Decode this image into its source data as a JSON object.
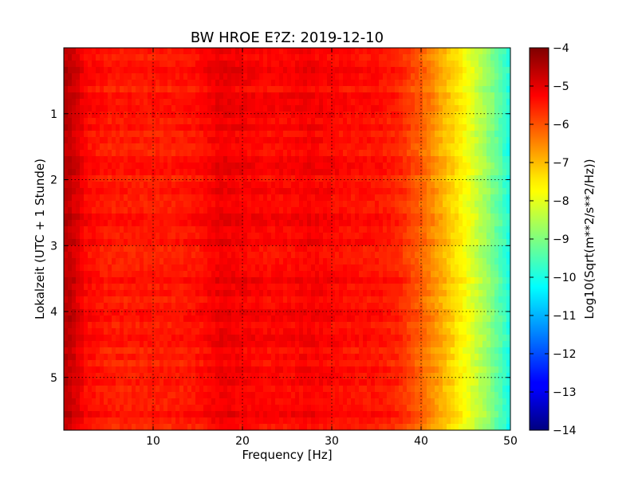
{
  "chart_data": {
    "type": "heatmap",
    "title": "BW HROE E?Z: 2019-12-10",
    "xlabel": "Frequency [Hz]",
    "ylabel": "Lokalzeit (UTC + 1 Stunde)",
    "xlim": [
      0,
      50
    ],
    "ylim": [
      5.8,
      0
    ],
    "x_ticks": [
      10,
      20,
      30,
      40,
      50
    ],
    "y_ticks": [
      1,
      2,
      3,
      4,
      5
    ],
    "grid": true,
    "colormap": "jet",
    "colorbar": {
      "label": "Log10(Sqrt(m**2/s**2/Hz))",
      "range": [
        -14,
        -4
      ],
      "ticks": [
        -4,
        -5,
        -6,
        -7,
        -8,
        -9,
        -10,
        -11,
        -12,
        -13,
        -14
      ]
    },
    "freq_hz": [
      0.5,
      2.5,
      5,
      7.5,
      10,
      12.5,
      15,
      17.5,
      20,
      22.5,
      25,
      27.5,
      30,
      32.5,
      35,
      37.5,
      40,
      42.5,
      45,
      47.5,
      50
    ],
    "mean_level": [
      -4.6,
      -5.3,
      -5.5,
      -5.5,
      -5.5,
      -5.5,
      -5.4,
      -5.1,
      -5.2,
      -5.3,
      -5.3,
      -5.2,
      -5.3,
      -5.4,
      -5.4,
      -5.6,
      -6.2,
      -7.0,
      -7.8,
      -8.8,
      -10.0
    ],
    "time_hours": [
      0,
      1,
      2,
      3,
      4,
      5,
      5.8
    ]
  }
}
